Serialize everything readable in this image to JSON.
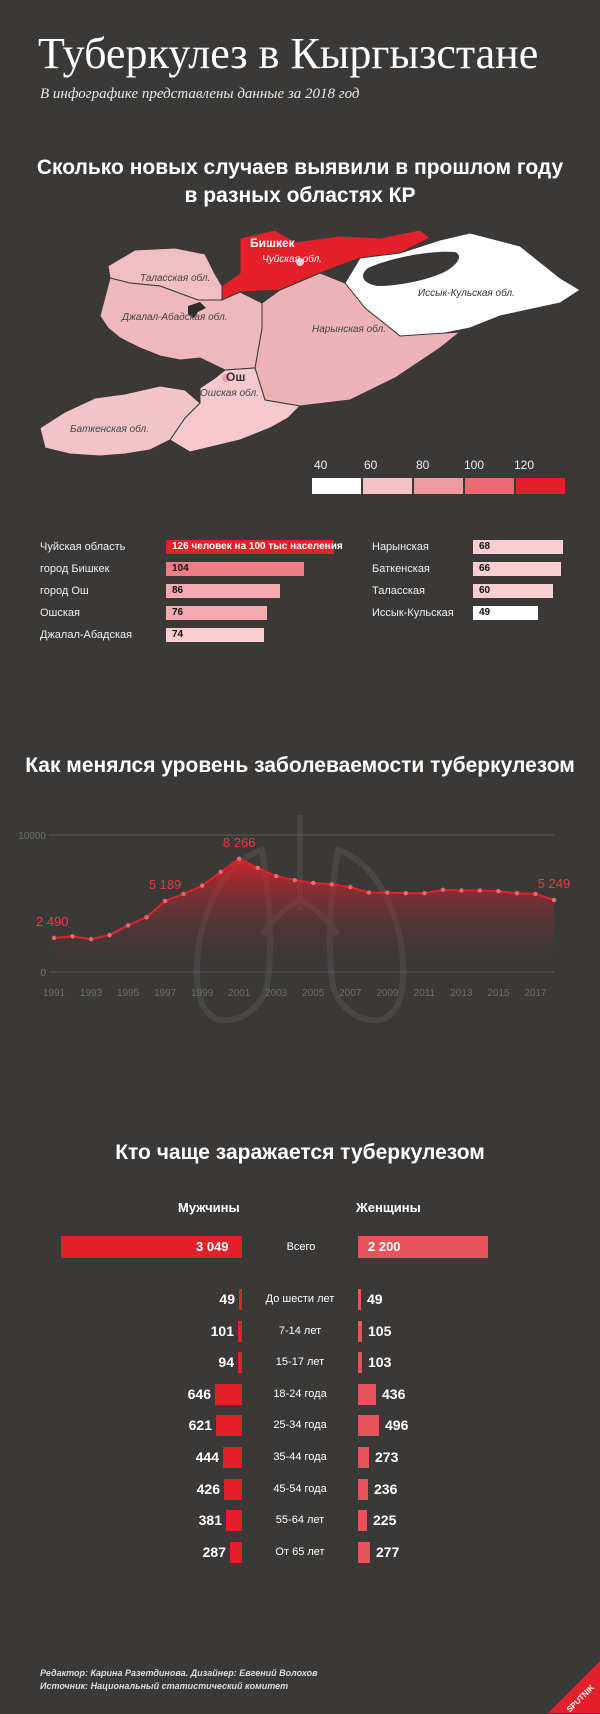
{
  "header": {
    "title": "Туберкулез в Кыргызстане",
    "subtitle": "В инфографике представлены данные за 2018 год"
  },
  "section_map": {
    "title_line1": "Сколько новых случаев выявили в прошлом году",
    "title_line2": "в разных областях КР",
    "map_labels": {
      "talas": "Таласская обл.",
      "bishkek": "Бишкек",
      "chui": "Чуйская обл.",
      "issykkul": "Иссык-Кульская обл.",
      "jalalabad": "Джалал-Абадская обл.",
      "naryn": "Нарынская обл.",
      "osh_city": "Ош",
      "osh": "Ошская обл.",
      "batken": "Баткенская обл."
    },
    "legend": {
      "ticks": [
        "40",
        "60",
        "80",
        "100",
        "120"
      ],
      "colors": [
        "#ffffff",
        "#f4c3c7",
        "#ee9aa1",
        "#e96a73",
        "#e4202a"
      ]
    }
  },
  "colors": {
    "accent": "#e4202a",
    "background": "#3a3938",
    "light": "#f6c8cc"
  },
  "chart_data": [
    {
      "type": "bar",
      "unit_label": "человек на 100 тыс населения",
      "left": [
        {
          "name": "Чуйская область",
          "value": 126
        },
        {
          "name": "город Бишкек",
          "value": 104
        },
        {
          "name": "город Ош",
          "value": 86
        },
        {
          "name": "Ошская",
          "value": 76
        },
        {
          "name": "Джалал-Абадская",
          "value": 74
        }
      ],
      "right": [
        {
          "name": "Нарынская",
          "value": 68
        },
        {
          "name": "Баткенская",
          "value": 66
        },
        {
          "name": "Таласская",
          "value": 60
        },
        {
          "name": "Иссык-Кульская",
          "value": 49
        }
      ]
    },
    {
      "type": "area",
      "title": "Как менялся уровень заболеваемости туберкулезом",
      "x": [
        1991,
        1992,
        1993,
        1994,
        1995,
        1996,
        1997,
        1998,
        1999,
        2000,
        2001,
        2002,
        2003,
        2004,
        2005,
        2006,
        2007,
        2008,
        2009,
        2010,
        2011,
        2012,
        2013,
        2014,
        2015,
        2016,
        2017,
        2018
      ],
      "values": [
        2490,
        2600,
        2400,
        2700,
        3400,
        4000,
        5189,
        5700,
        6300,
        7300,
        8266,
        7600,
        7000,
        6700,
        6500,
        6400,
        6200,
        5800,
        5800,
        5750,
        5750,
        6000,
        5950,
        5950,
        5900,
        5750,
        5700,
        5249
      ],
      "point_labels": [
        {
          "index": 0,
          "text": "2 490"
        },
        {
          "index": 6,
          "text": "5 189"
        },
        {
          "index": 10,
          "text": "8 266"
        },
        {
          "index": 27,
          "text": "5 249"
        }
      ],
      "yticks": [
        "0",
        "10000"
      ],
      "xticks": [
        "1991",
        "1993",
        "1995",
        "1997",
        "1999",
        "2001",
        "2003",
        "2005",
        "2007",
        "2009",
        "2011",
        "2013",
        "2015",
        "2017"
      ],
      "ylim": [
        0,
        10000
      ]
    },
    {
      "type": "bar",
      "title": "Кто чаще заражается туберкулезом",
      "male_label": "Мужчины",
      "female_label": "Женщины",
      "total": {
        "label": "Всего",
        "male": 3049,
        "female": 2200,
        "male_text": "3 049",
        "female_text": "2 200"
      },
      "groups": [
        {
          "label": "До шести лет",
          "male": 49,
          "female": 49
        },
        {
          "label": "7-14 лет",
          "male": 101,
          "female": 105
        },
        {
          "label": "15-17 лет",
          "male": 94,
          "female": 103
        },
        {
          "label": "18-24 года",
          "male": 646,
          "female": 436
        },
        {
          "label": "25-34 года",
          "male": 621,
          "female": 496
        },
        {
          "label": "35-44 года",
          "male": 444,
          "female": 273
        },
        {
          "label": "45-54 года",
          "male": 426,
          "female": 236
        },
        {
          "label": "55-64 лет",
          "male": 381,
          "female": 225
        },
        {
          "label": "От 65 лет",
          "male": 287,
          "female": 277
        }
      ]
    }
  ],
  "footer": {
    "line1": "Редактор: Карина Разетдинова. Дизайнер: Евгений Волохов",
    "line2": "Источник: Национальный статистический комитет"
  },
  "brand": {
    "name": "SPUTNIK"
  }
}
